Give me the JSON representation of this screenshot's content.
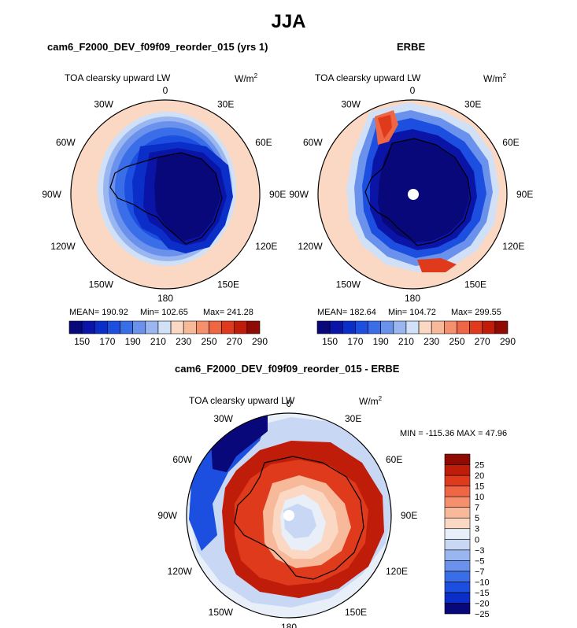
{
  "page": {
    "title": "JJA"
  },
  "panels": [
    {
      "title": "cam6_F2000_DEV_f09f09_reorder_015 (yrs 1)",
      "variable": "TOA clearsky upward LW",
      "units": "W/m",
      "units_exp": "2",
      "stats": {
        "mean": "MEAN= 190.92",
        "min": "Min= 102.65",
        "max": "Max= 241.28"
      },
      "lon_labels": [
        "0",
        "30E",
        "60E",
        "90E",
        "120E",
        "150E",
        "180",
        "150W",
        "120W",
        "90W",
        "60W",
        "30W"
      ]
    },
    {
      "title": "ERBE",
      "variable": "TOA clearsky upward LW",
      "units": "W/m",
      "units_exp": "2",
      "stats": {
        "mean": "MEAN= 182.64",
        "min": "Min= 104.72",
        "max": "Max= 299.55"
      },
      "lon_labels": [
        "0",
        "30E",
        "60E",
        "90E",
        "120E",
        "150E",
        "180",
        "150W",
        "120W",
        "90W",
        "60W",
        "30W"
      ]
    },
    {
      "title": "cam6_F2000_DEV_f09f09_reorder_015 - ERBE",
      "variable": "TOA clearsky upward LW",
      "units": "W/m",
      "units_exp": "2",
      "stats": {
        "range": "MIN = -115.36  MAX = 47.96"
      },
      "lon_labels": [
        "0",
        "30E",
        "60E",
        "90E",
        "120E",
        "150E",
        "180",
        "150W",
        "120W",
        "90W",
        "60W",
        "30W"
      ]
    }
  ],
  "chart_data": [
    {
      "type": "heatmap",
      "title": "cam6_F2000_DEV_f09f09_reorder_015 (yrs 1)",
      "projection": "south polar stereographic",
      "field": "TOA clearsky upward LW (W/m2)",
      "colorbar_ticks": [
        150,
        170,
        190,
        210,
        230,
        250,
        270,
        290
      ],
      "colorbar_orientation": "horizontal",
      "mean": 190.92,
      "min": 102.65,
      "max": 241.28
    },
    {
      "type": "heatmap",
      "title": "ERBE",
      "projection": "south polar stereographic",
      "field": "TOA clearsky upward LW (W/m2)",
      "colorbar_ticks": [
        150,
        170,
        190,
        210,
        230,
        250,
        270,
        290
      ],
      "colorbar_orientation": "horizontal",
      "mean": 182.64,
      "min": 104.72,
      "max": 299.55
    },
    {
      "type": "heatmap",
      "title": "cam6_F2000_DEV_f09f09_reorder_015 - ERBE",
      "projection": "south polar stereographic",
      "field": "TOA clearsky upward LW difference (W/m2)",
      "colorbar_ticks": [
        "25",
        "20",
        "15",
        "10",
        "7",
        "5",
        "3",
        "0",
        "−3",
        "−5",
        "−7",
        "−10",
        "−15",
        "−20",
        "−25"
      ],
      "colorbar_orientation": "vertical",
      "min": -115.36,
      "max": 47.96
    }
  ],
  "colors": {
    "abs_scale": [
      "#08087a",
      "#0a14a6",
      "#0b2ec8",
      "#1c4fe0",
      "#3a6ee8",
      "#6a92ec",
      "#9ab6f0",
      "#cfe0f7",
      "#fbd8c4",
      "#f8b89a",
      "#f4906e",
      "#ee6644",
      "#e03a1c",
      "#c01c0a",
      "#900a04"
    ],
    "diff_scale": [
      "#08087a",
      "#0b2ec8",
      "#1c4fe0",
      "#3a6ee8",
      "#6a92ec",
      "#9ab6f0",
      "#c8d8f4",
      "#e8eff8",
      "#fbd8c4",
      "#f8b89a",
      "#f4906e",
      "#ee6644",
      "#e03a1c",
      "#c01c0a",
      "#900a04"
    ]
  }
}
